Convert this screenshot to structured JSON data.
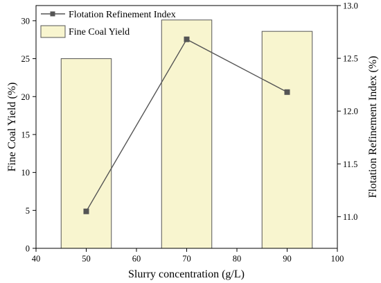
{
  "chart_data": {
    "type": "bar+line",
    "x": [
      50,
      70,
      90
    ],
    "xlabel": "Slurry concentration (g/L)",
    "xlim": [
      40,
      100
    ],
    "xticks": [
      40,
      50,
      60,
      70,
      80,
      90,
      100
    ],
    "bar_width": 10,
    "series": [
      {
        "name": "Fine Coal Yield",
        "type": "bar",
        "axis": "left",
        "values": [
          25.0,
          30.1,
          28.6
        ],
        "color": "#f8f5cf",
        "edge_color": "#555555"
      },
      {
        "name": "Flotation Refinement Index",
        "type": "line",
        "axis": "right",
        "marker": "square",
        "values": [
          11.05,
          12.68,
          12.18
        ],
        "color": "#555555"
      }
    ],
    "ylabel": "Fine Coal Yield (%)",
    "ylim": [
      0,
      32
    ],
    "yticks": [
      0,
      5,
      10,
      15,
      20,
      25,
      30
    ],
    "y2label": "Flotation Refinement Index (%)",
    "y2lim": [
      10.7,
      13.0
    ],
    "y2ticks": [
      11.0,
      11.5,
      12.0,
      12.5,
      13.0
    ],
    "y2tick_labels": [
      "11.0",
      "11.5",
      "12.0",
      "12.5",
      "13.0"
    ],
    "legend": "top-left",
    "grid": false
  }
}
